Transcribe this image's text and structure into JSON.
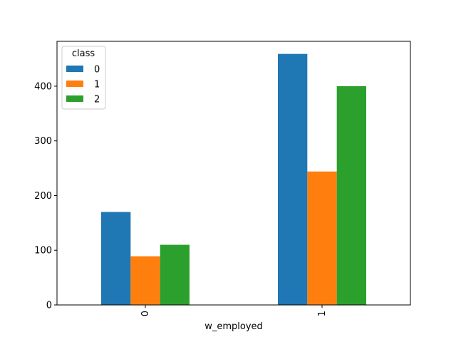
{
  "chart_data": {
    "type": "bar",
    "categories": [
      "0",
      "1"
    ],
    "series": [
      {
        "name": "0",
        "values": [
          170,
          459
        ],
        "color": "#1f77b4"
      },
      {
        "name": "1",
        "values": [
          89,
          244
        ],
        "color": "#ff7f0e"
      },
      {
        "name": "2",
        "values": [
          110,
          400
        ],
        "color": "#2ca02c"
      }
    ],
    "title": "",
    "xlabel": "w_employed",
    "ylabel": "",
    "ylim": [
      0,
      482
    ],
    "yticks": [
      0,
      100,
      200,
      300,
      400
    ],
    "grid": false,
    "legend": {
      "title": "class",
      "position": "top-left"
    }
  }
}
